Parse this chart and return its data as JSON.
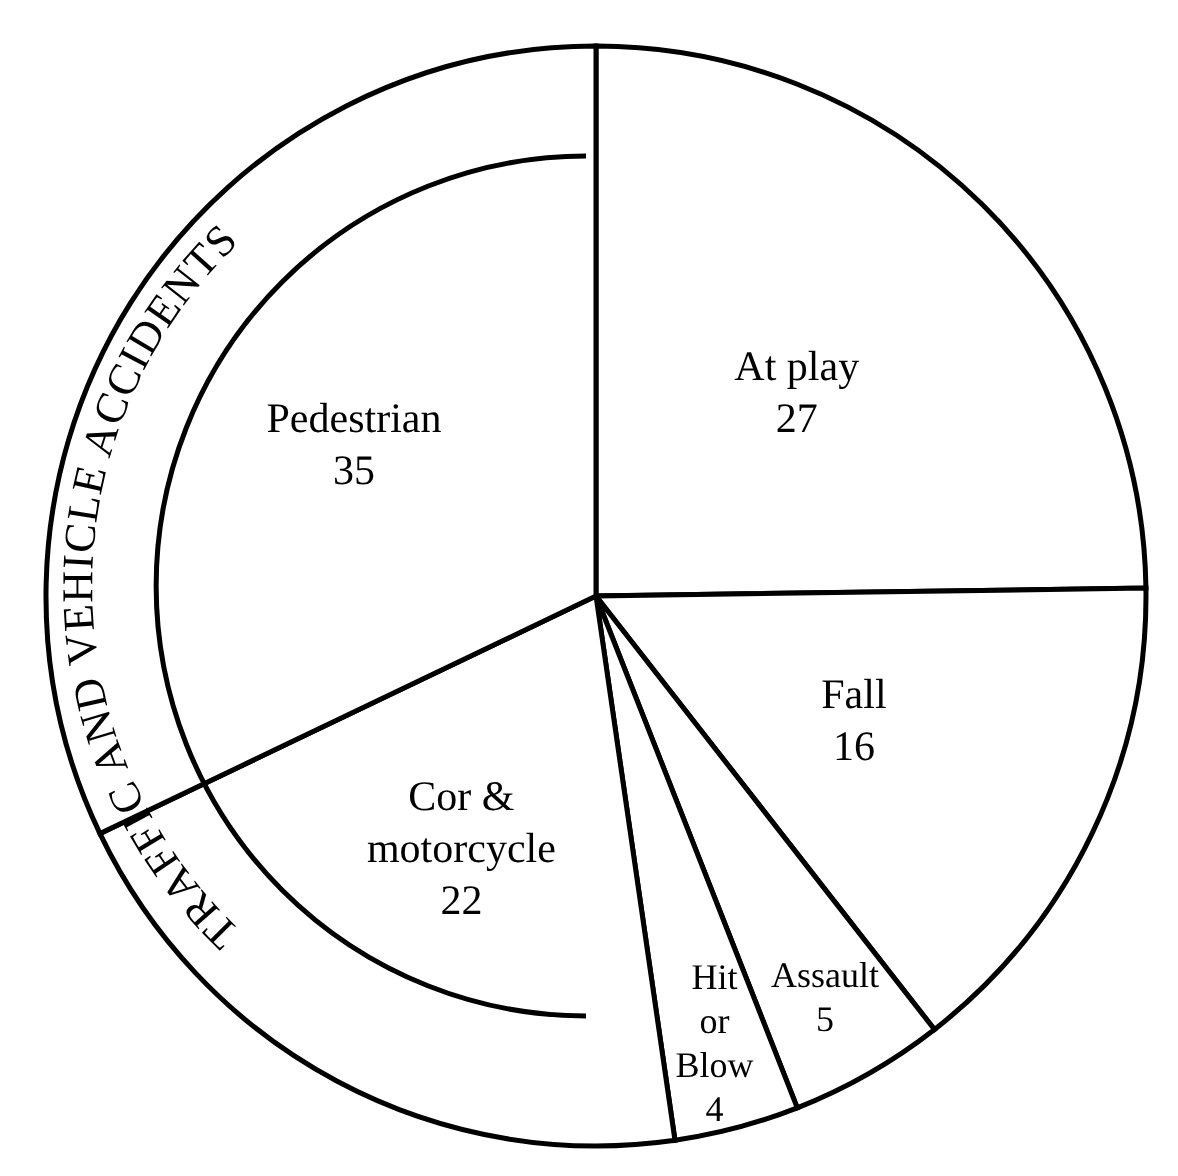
{
  "chart_data": {
    "type": "pie",
    "categories": [
      "At play",
      "Fall",
      "Assault",
      "Hit or Blow",
      "Cor & motorcycle",
      "Pedestrian"
    ],
    "values": [
      27,
      16,
      5,
      4,
      22,
      35
    ],
    "colors": [
      "#ffffff",
      "#ffffff",
      "#ffffff",
      "#ffffff",
      "#ffffff",
      "#ffffff"
    ],
    "data_labels": true,
    "legend": false,
    "annotations": [
      "TRAFFIC AND VEHICLE ACCIDENTS"
    ]
  }
}
